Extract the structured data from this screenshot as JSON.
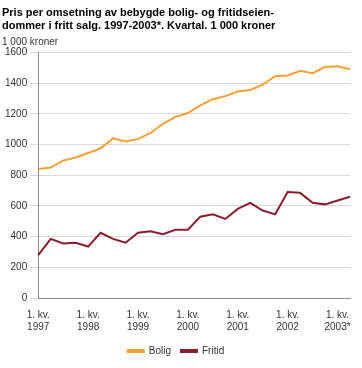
{
  "chart_data": {
    "type": "line",
    "title": [
      "Pris per omsetning av bebygde bolig- og fritidseien-",
      "dommer i fritt salg. 1997-2003*. Kvartal. 1 000 kroner"
    ],
    "y_label": "1 000 kroner",
    "categories": [
      [
        "1. kv.",
        "1997"
      ],
      null,
      null,
      null,
      [
        "1. kv.",
        "1998"
      ],
      null,
      null,
      null,
      [
        "1. kv.",
        "1999"
      ],
      null,
      null,
      null,
      [
        "1. kv.",
        "2000"
      ],
      null,
      null,
      null,
      [
        "1. kv.",
        "2001"
      ],
      null,
      null,
      null,
      [
        "1. kv.",
        "2002"
      ],
      null,
      null,
      null,
      [
        "1. kv.",
        "2003*"
      ],
      null
    ],
    "series": [
      {
        "name": "Bolig",
        "color": "#f5a032",
        "values": [
          840,
          850,
          895,
          915,
          945,
          975,
          1040,
          1020,
          1035,
          1075,
          1135,
          1180,
          1205,
          1255,
          1295,
          1315,
          1345,
          1355,
          1390,
          1445,
          1450,
          1480,
          1465,
          1505,
          1510,
          1490
        ]
      },
      {
        "name": "Fritid",
        "color": "#8b1c2c",
        "values": [
          280,
          385,
          355,
          360,
          335,
          425,
          385,
          360,
          425,
          435,
          415,
          445,
          445,
          530,
          545,
          515,
          580,
          620,
          570,
          545,
          690,
          685,
          620,
          610,
          635,
          660
        ]
      }
    ],
    "ylim": [
      0,
      1600
    ],
    "yticks": [
      0,
      200,
      400,
      600,
      800,
      1000,
      1200,
      1400,
      1600
    ],
    "grid": true,
    "legend": "bottom"
  }
}
